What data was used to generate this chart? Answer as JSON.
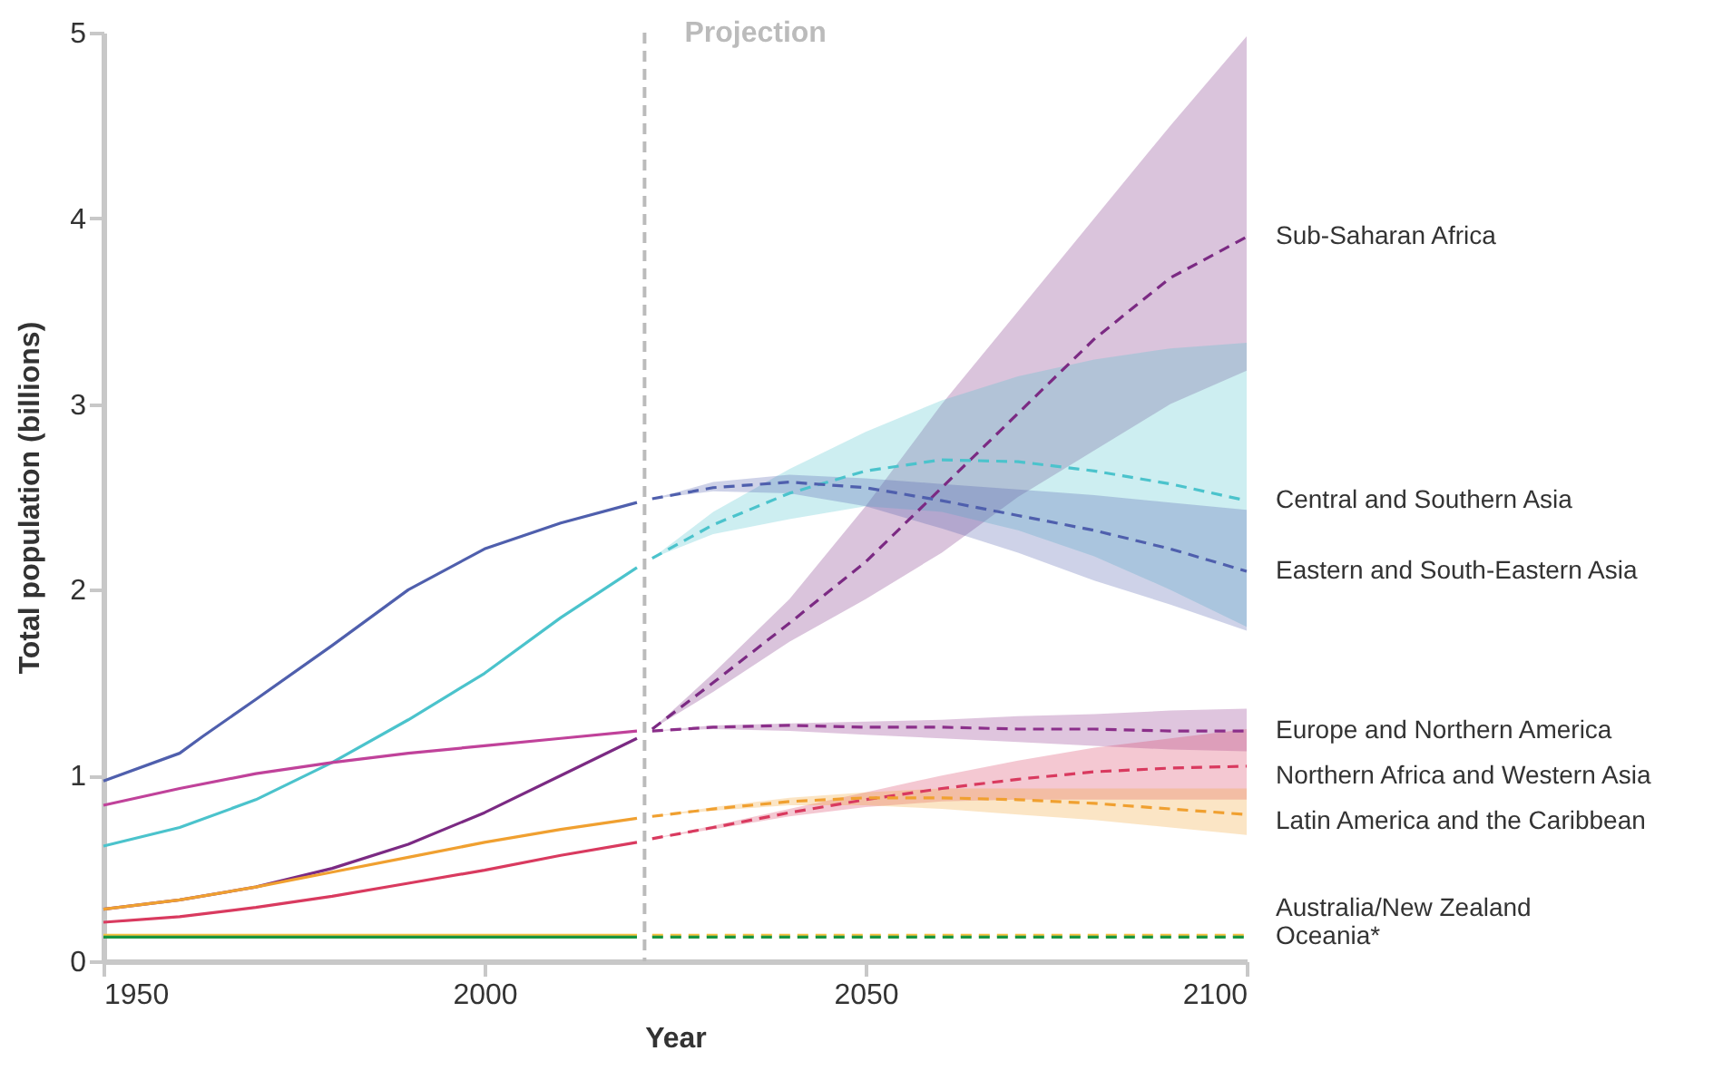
{
  "chart_data": {
    "type": "line",
    "xlabel": "Year",
    "ylabel": "Total population (billions)",
    "xlim": [
      1950,
      2100
    ],
    "ylim": [
      0,
      5
    ],
    "xticks": [
      1950,
      2000,
      2050,
      2100
    ],
    "yticks": [
      0,
      1,
      2,
      3,
      4,
      5
    ],
    "grid": false,
    "marker": "none",
    "ref_lines": [
      {
        "axis": "x",
        "value": 2021,
        "label": "Projection",
        "color": "#bbbbbb",
        "line_style": "dashed"
      }
    ],
    "series": [
      {
        "color": "#4f5fad",
        "line_style": "solid",
        "x": [
          1950,
          1960,
          1963,
          1970,
          1980,
          1990,
          2000,
          2010,
          2020
        ],
        "values": [
          0.97,
          1.12,
          1.21,
          1.41,
          1.7,
          2.0,
          2.22,
          2.36,
          2.47
        ]
      },
      {
        "color": "#4bc3cc",
        "line_style": "solid",
        "x": [
          1950,
          1960,
          1970,
          1980,
          1990,
          2000,
          2010,
          2020
        ],
        "values": [
          0.62,
          0.72,
          0.87,
          1.07,
          1.3,
          1.55,
          1.85,
          2.12
        ]
      },
      {
        "color": "#7b2a83",
        "line_style": "solid",
        "x": [
          1950,
          1960,
          1970,
          1980,
          1990,
          2000,
          2010,
          2020
        ],
        "values": [
          0.28,
          0.33,
          0.4,
          0.5,
          0.63,
          0.8,
          1.0,
          1.2
        ]
      },
      {
        "color": "#c0429a",
        "line_style": "solid",
        "x": [
          1950,
          1960,
          1970,
          1980,
          1990,
          2000,
          2010,
          2020
        ],
        "values": [
          0.84,
          0.93,
          1.01,
          1.07,
          1.12,
          1.16,
          1.2,
          1.24
        ]
      },
      {
        "color": "#d93a5f",
        "line_style": "solid",
        "x": [
          1950,
          1960,
          1970,
          1980,
          1990,
          2000,
          2010,
          2020
        ],
        "values": [
          0.21,
          0.24,
          0.29,
          0.35,
          0.42,
          0.49,
          0.57,
          0.64
        ]
      },
      {
        "color": "#f0a030",
        "line_style": "solid",
        "x": [
          1950,
          1960,
          1970,
          1980,
          1990,
          2000,
          2010,
          2020
        ],
        "values": [
          0.28,
          0.33,
          0.4,
          0.48,
          0.56,
          0.64,
          0.71,
          0.77
        ]
      },
      {
        "color": "#f5c242",
        "line_style": "solid",
        "x": [
          1950,
          2020
        ],
        "values": [
          0.14,
          0.14
        ]
      },
      {
        "color": "#1a9641",
        "line_style": "solid",
        "x": [
          1950,
          2020
        ],
        "values": [
          0.13,
          0.13
        ]
      },
      {
        "name": "Sub-Saharan Africa",
        "color": "#7b2a83",
        "line_style": "dashed",
        "x": [
          2022,
          2030,
          2040,
          2050,
          2060,
          2070,
          2080,
          2090,
          2100
        ],
        "values": [
          1.25,
          1.5,
          1.82,
          2.15,
          2.55,
          2.95,
          3.35,
          3.68,
          3.9
        ],
        "lower": [
          1.25,
          1.45,
          1.72,
          1.95,
          2.2,
          2.5,
          2.75,
          3.0,
          3.18
        ],
        "upper": [
          1.25,
          1.55,
          1.95,
          2.45,
          3.0,
          3.5,
          4.0,
          4.5,
          4.98
        ]
      },
      {
        "name": "Central and Southern Asia",
        "color": "#4bc3cc",
        "line_style": "dashed",
        "x": [
          2022,
          2030,
          2040,
          2050,
          2060,
          2070,
          2080,
          2090,
          2100
        ],
        "values": [
          2.17,
          2.35,
          2.52,
          2.64,
          2.7,
          2.69,
          2.64,
          2.57,
          2.48
        ],
        "lower": [
          2.17,
          2.3,
          2.38,
          2.45,
          2.42,
          2.32,
          2.18,
          2.0,
          1.8
        ],
        "upper": [
          2.17,
          2.42,
          2.65,
          2.85,
          3.02,
          3.15,
          3.24,
          3.3,
          3.33
        ]
      },
      {
        "name": "Eastern and South-Eastern Asia",
        "color": "#4f5fad",
        "line_style": "dashed",
        "x": [
          2022,
          2030,
          2040,
          2050,
          2060,
          2070,
          2080,
          2090,
          2100
        ],
        "values": [
          2.49,
          2.55,
          2.58,
          2.55,
          2.48,
          2.4,
          2.32,
          2.22,
          2.1
        ],
        "lower": [
          2.49,
          2.53,
          2.52,
          2.45,
          2.33,
          2.2,
          2.05,
          1.92,
          1.78
        ],
        "upper": [
          2.49,
          2.58,
          2.62,
          2.6,
          2.57,
          2.54,
          2.51,
          2.47,
          2.43
        ]
      },
      {
        "name": "Europe and Northern America",
        "color": "#8b2f8a",
        "line_style": "dashed",
        "x": [
          2022,
          2030,
          2040,
          2050,
          2060,
          2070,
          2080,
          2090,
          2100
        ],
        "values": [
          1.24,
          1.26,
          1.27,
          1.26,
          1.26,
          1.25,
          1.25,
          1.24,
          1.24
        ],
        "lower": [
          1.24,
          1.25,
          1.24,
          1.22,
          1.2,
          1.18,
          1.16,
          1.14,
          1.13
        ],
        "upper": [
          1.24,
          1.27,
          1.28,
          1.29,
          1.3,
          1.32,
          1.33,
          1.35,
          1.36
        ]
      },
      {
        "name": "Northern Africa and Western Asia",
        "color": "#d93a5f",
        "line_style": "dashed",
        "x": [
          2022,
          2030,
          2040,
          2050,
          2060,
          2070,
          2080,
          2090,
          2100
        ],
        "values": [
          0.66,
          0.72,
          0.8,
          0.87,
          0.93,
          0.98,
          1.02,
          1.04,
          1.05
        ],
        "lower": [
          0.66,
          0.71,
          0.78,
          0.83,
          0.86,
          0.87,
          0.87,
          0.87,
          0.87
        ],
        "upper": [
          0.66,
          0.73,
          0.82,
          0.91,
          1.0,
          1.08,
          1.15,
          1.2,
          1.25
        ]
      },
      {
        "name": "Latin America and the Caribbean",
        "color": "#f0a030",
        "line_style": "dashed",
        "x": [
          2022,
          2030,
          2040,
          2050,
          2060,
          2070,
          2080,
          2090,
          2100
        ],
        "values": [
          0.78,
          0.82,
          0.86,
          0.88,
          0.88,
          0.87,
          0.85,
          0.82,
          0.79
        ],
        "lower": [
          0.78,
          0.81,
          0.84,
          0.84,
          0.82,
          0.79,
          0.76,
          0.72,
          0.68
        ],
        "upper": [
          0.78,
          0.83,
          0.88,
          0.91,
          0.93,
          0.93,
          0.93,
          0.93,
          0.93
        ]
      },
      {
        "name": "Australia/New Zealand",
        "color": "#f5c242",
        "line_style": "dashed",
        "x": [
          2022,
          2100
        ],
        "values": [
          0.14,
          0.14
        ]
      },
      {
        "name": "Oceania*",
        "color": "#1a9641",
        "line_style": "dashed",
        "x": [
          2022,
          2100
        ],
        "values": [
          0.13,
          0.13
        ]
      }
    ]
  }
}
